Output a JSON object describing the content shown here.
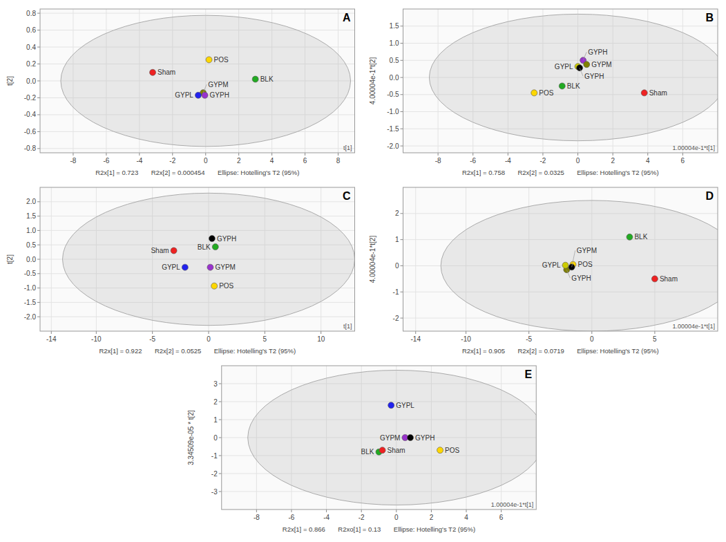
{
  "chart_data": [
    {
      "type": "scatter",
      "title": "A",
      "xlabel": "R2x[1] = 0.723       R2x[2] = 0.000454       Ellipse: Hotelling's T2 (95%)",
      "ylabel": "t[2]",
      "annotations": [
        "t[1]"
      ],
      "x": [
        0.2,
        3.0,
        -3.2,
        -0.15,
        -0.45,
        -0.05
      ],
      "values": [
        0.25,
        0.02,
        0.1,
        -0.14,
        -0.17,
        -0.17
      ],
      "labels": [
        "POS",
        "BLK",
        "Sham",
        "GYPM",
        "GYPL",
        "GYPH"
      ],
      "colors": [
        "#FFD700",
        "#22aa22",
        "#ee2222",
        "#808000",
        "#2222ee",
        "#9933cc"
      ],
      "ellipse": {
        "cx": 0,
        "cy": 0,
        "width": 17.5,
        "height": 1.55
      },
      "xlim": [
        -10,
        9
      ],
      "ylim": [
        -0.85,
        0.85
      ],
      "xticks": [
        -8,
        -6,
        -4,
        -2,
        0,
        2,
        4,
        6,
        8
      ],
      "yticks": [
        -0.8,
        -0.6,
        -0.4,
        -0.2,
        {
          "value": 0,
          "label": "0.0"
        },
        0.2,
        0.4,
        0.6,
        0.8
      ],
      "grid": true
    },
    {
      "type": "scatter",
      "title": "B",
      "xlabel": "R2x[1] = 0.758       R2x[2] = 0.0325       Ellipse: Hotelling's T2 (95%)",
      "ylabel": "4.00004e-1*t[2]",
      "annotations": [
        "1.00004e-1*t[1]"
      ],
      "x": [
        0.3,
        0.5,
        0.0,
        0.1,
        -0.9,
        -2.5,
        3.8
      ],
      "values": [
        0.5,
        0.38,
        0.32,
        0.28,
        -0.25,
        -0.45,
        -0.45
      ],
      "labels": [
        "GYPH",
        "GYPM",
        "GYPL",
        "GYPH",
        "BLK",
        "POS",
        "Sham"
      ],
      "colors": [
        "#9933cc",
        "#808000",
        "#cccc00",
        "#000000",
        "#22aa22",
        "#FFD700",
        "#ee2222"
      ],
      "ellipse": {
        "cx": 0,
        "cy": 0,
        "width": 17.0,
        "height": 3.7
      },
      "xlim": [
        -10,
        8
      ],
      "ylim": [
        -2.2,
        2.0
      ],
      "xticks": [
        -8,
        -6,
        -4,
        -2,
        0,
        2,
        4,
        6
      ],
      "yticks": [
        {
          "value": -2,
          "label": "-2.0"
        },
        -1.5,
        {
          "value": -1,
          "label": "-1.0"
        },
        -0.5,
        {
          "value": 0,
          "label": "0.0"
        },
        0.5,
        {
          "value": 1,
          "label": "1.0"
        },
        1.5
      ],
      "grid": true
    },
    {
      "type": "scatter",
      "title": "C",
      "xlabel": "R2x[1] = 0.922       R2x[2] = 0.0525       Ellipse: Hotelling's T2 (95%)",
      "ylabel": "t[2]",
      "annotations": [
        "t[1]"
      ],
      "x": [
        0.3,
        0.6,
        -3.1,
        0.15,
        -2.1,
        0.5
      ],
      "values": [
        0.72,
        0.43,
        0.3,
        -0.28,
        -0.28,
        -0.93
      ],
      "labels": [
        "GYPH",
        "BLK",
        "Sham",
        "GYPM",
        "GYPL",
        "POS"
      ],
      "colors": [
        "#000000",
        "#22aa22",
        "#ee2222",
        "#9933cc",
        "#2222ee",
        "#FFD700"
      ],
      "ellipse": {
        "cx": 0,
        "cy": 0,
        "width": 26,
        "height": 4.6
      },
      "xlim": [
        -15,
        13
      ],
      "ylim": [
        -2.5,
        2.5
      ],
      "xticks": [
        -14,
        -10,
        -5,
        0,
        5,
        10
      ],
      "yticks": [
        {
          "value": -2,
          "label": "-2.0"
        },
        -1.5,
        {
          "value": -1,
          "label": "-1.0"
        },
        -0.5,
        {
          "value": 0,
          "label": "0.0"
        },
        0.5,
        {
          "value": 1,
          "label": "1.0"
        },
        1.5,
        {
          "value": 2,
          "label": "2.0"
        }
      ],
      "grid": true
    },
    {
      "type": "scatter",
      "title": "D",
      "xlabel": "R2x[1] = 0.905       R2x[2] = 0.0719       Ellipse: Hotelling's T2 (95%)",
      "ylabel": "4.00004e-1*t[2]",
      "annotations": [
        "1.00004e-1*t[1]"
      ],
      "x": [
        3.0,
        -1.5,
        -2.0,
        -2.1,
        -1.6,
        5.0
      ],
      "values": [
        1.1,
        0.05,
        -0.15,
        0.02,
        -0.05,
        -0.5
      ],
      "labels": [
        "BLK",
        "POS",
        "GYPH",
        "GYPL",
        "GYPM",
        "Sham"
      ],
      "colors": [
        "#22aa22",
        "#FFD700",
        "#808000",
        "#cccc00",
        "#000000",
        "#ee2222"
      ],
      "ellipse": {
        "cx": 0,
        "cy": 0,
        "width": 24,
        "height": 5.0
      },
      "xlim": [
        -15,
        10
      ],
      "ylim": [
        -2.5,
        3.0
      ],
      "xticks": [
        -14,
        -10,
        -5,
        0,
        5
      ],
      "yticks": [
        -2,
        -1,
        0,
        1,
        2
      ],
      "grid": true
    },
    {
      "type": "scatter",
      "title": "E",
      "xlabel": "R2x[1] = 0.866       R2xo[1] = 0.13       Ellipse: Hotelling's T2 (95%)",
      "ylabel": "3.34509e-05 * t[2]",
      "annotations": [
        "1.00004e-1*t[1]"
      ],
      "x": [
        -0.3,
        0.5,
        0.8,
        -1.0,
        -0.8,
        2.5
      ],
      "values": [
        1.8,
        0.0,
        0.0,
        -0.8,
        -0.7,
        -0.7
      ],
      "labels": [
        "GYPL",
        "GYPM",
        "GYPH",
        "BLK",
        "Sham",
        "POS"
      ],
      "colors": [
        "#2222ee",
        "#9933cc",
        "#000000",
        "#22aa22",
        "#ee2222",
        "#FFD700"
      ],
      "ellipse": {
        "cx": 0,
        "cy": 0,
        "width": 17.0,
        "height": 7.5
      },
      "xlim": [
        -10,
        8
      ],
      "ylim": [
        -4.0,
        4.0
      ],
      "xticks": [
        -8,
        -6,
        -4,
        -2,
        0,
        2,
        4,
        6
      ],
      "yticks": [
        -3,
        -2,
        -1,
        0,
        1,
        2,
        3
      ],
      "grid": true
    }
  ]
}
